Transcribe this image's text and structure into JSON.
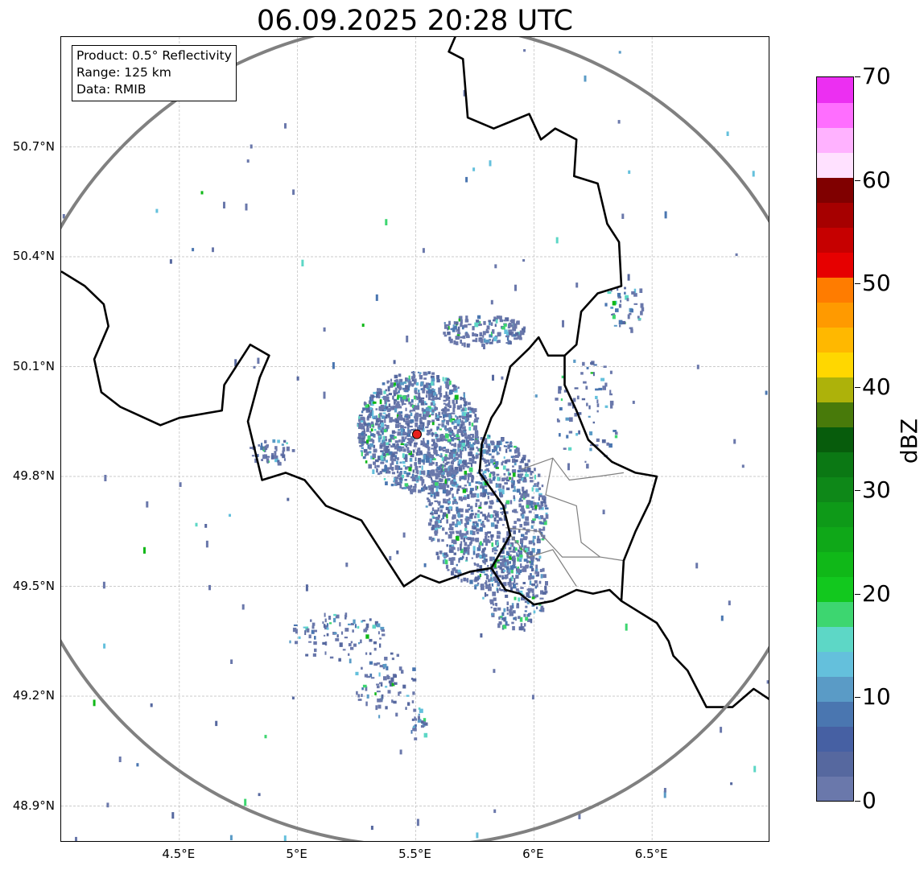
{
  "title": "06.09.2025 20:28 UTC",
  "info_box": {
    "product": "Product: 0.5° Reflectivity",
    "range": "Range: 125 km",
    "data_source": "Data: RMIB"
  },
  "axes": {
    "lon_range": [
      4.0,
      7.0
    ],
    "lat_range": [
      48.8,
      51.0
    ],
    "lat_ticks": [
      {
        "value": 50.7,
        "label": "50.7°N"
      },
      {
        "value": 50.4,
        "label": "50.4°N"
      },
      {
        "value": 50.1,
        "label": "50.1°N"
      },
      {
        "value": 49.8,
        "label": "49.8°N"
      },
      {
        "value": 49.5,
        "label": "49.5°N"
      },
      {
        "value": 49.2,
        "label": "49.2°N"
      },
      {
        "value": 48.9,
        "label": "48.9°N"
      }
    ],
    "lon_ticks": [
      {
        "value": 4.5,
        "label": "4.5°E"
      },
      {
        "value": 5.0,
        "label": "5°E"
      },
      {
        "value": 5.5,
        "label": "5.5°E"
      },
      {
        "value": 6.0,
        "label": "6°E"
      },
      {
        "value": 6.5,
        "label": "6.5°E"
      }
    ],
    "gridlines": true
  },
  "radar": {
    "site": {
      "lon": 5.505,
      "lat": 49.915
    },
    "range_km": 125,
    "site_color": "#e8201c",
    "range_ring_color": "#808080"
  },
  "colorbar": {
    "unit": "dBZ",
    "min": 0,
    "max": 70,
    "tick_labels": [
      {
        "value": 0,
        "label": "0"
      },
      {
        "value": 10,
        "label": "10"
      },
      {
        "value": 20,
        "label": "20"
      },
      {
        "value": 30,
        "label": "30"
      },
      {
        "value": 40,
        "label": "40"
      },
      {
        "value": 50,
        "label": "50"
      },
      {
        "value": 60,
        "label": "60"
      },
      {
        "value": 70,
        "label": "70"
      }
    ],
    "colors": [
      "#6a78ab",
      "#56689f",
      "#4660a3",
      "#4a76b0",
      "#5a9bc6",
      "#64c0dc",
      "#5dd7c6",
      "#3dd670",
      "#12c81e",
      "#10b818",
      "#0fa818",
      "#0e9a18",
      "#0e8818",
      "#0b7814",
      "#075c0c",
      "#487a0a",
      "#adb20a",
      "#ffd700",
      "#ffb800",
      "#ff9a00",
      "#ff7c00",
      "#e60000",
      "#c60000",
      "#a60000",
      "#800000",
      "#ffe1ff",
      "#ffb2ff",
      "#ff6eff",
      "#ec2ff2"
    ]
  },
  "borders": {
    "national": [
      [
        [
          4.0,
          50.36
        ],
        [
          4.1,
          50.32
        ],
        [
          4.18,
          50.27
        ],
        [
          4.2,
          50.21
        ],
        [
          4.14,
          50.12
        ],
        [
          4.17,
          50.03
        ],
        [
          4.25,
          49.99
        ],
        [
          4.42,
          49.94
        ],
        [
          4.5,
          49.96
        ],
        [
          4.68,
          49.98
        ],
        [
          4.69,
          50.05
        ],
        [
          4.8,
          50.16
        ],
        [
          4.88,
          50.13
        ],
        [
          4.84,
          50.07
        ],
        [
          4.79,
          49.95
        ],
        [
          4.85,
          49.79
        ],
        [
          4.95,
          49.81
        ],
        [
          5.03,
          49.79
        ],
        [
          5.12,
          49.72
        ],
        [
          5.27,
          49.68
        ],
        [
          5.33,
          49.62
        ],
        [
          5.45,
          49.5
        ],
        [
          5.52,
          49.53
        ],
        [
          5.6,
          49.51
        ],
        [
          5.73,
          49.54
        ],
        [
          5.82,
          49.55
        ],
        [
          5.88,
          49.49
        ],
        [
          5.94,
          49.48
        ],
        [
          6.0,
          49.45
        ],
        [
          6.08,
          49.46
        ],
        [
          6.18,
          49.49
        ],
        [
          6.25,
          49.48
        ],
        [
          6.32,
          49.49
        ],
        [
          6.37,
          49.46
        ],
        [
          6.42,
          49.44
        ],
        [
          6.52,
          49.4
        ],
        [
          6.57,
          49.35
        ],
        [
          6.59,
          49.31
        ],
        [
          6.65,
          49.27
        ],
        [
          6.73,
          49.17
        ],
        [
          6.84,
          49.17
        ],
        [
          6.93,
          49.22
        ],
        [
          7.0,
          49.19
        ]
      ],
      [
        [
          5.82,
          49.55
        ],
        [
          5.9,
          49.64
        ],
        [
          5.87,
          49.72
        ],
        [
          5.77,
          49.81
        ],
        [
          5.78,
          49.89
        ],
        [
          5.82,
          49.96
        ],
        [
          5.86,
          50.0
        ],
        [
          5.9,
          50.1
        ],
        [
          5.98,
          50.15
        ],
        [
          6.02,
          50.18
        ],
        [
          6.06,
          50.13
        ],
        [
          6.13,
          50.13
        ],
        [
          6.13,
          50.05
        ],
        [
          6.18,
          49.98
        ],
        [
          6.23,
          49.9
        ],
        [
          6.33,
          49.84
        ],
        [
          6.43,
          49.81
        ],
        [
          6.52,
          49.8
        ],
        [
          6.49,
          49.73
        ],
        [
          6.43,
          49.65
        ],
        [
          6.38,
          49.57
        ],
        [
          6.37,
          49.46
        ]
      ],
      [
        [
          6.13,
          50.13
        ],
        [
          6.18,
          50.16
        ],
        [
          6.2,
          50.25
        ],
        [
          6.27,
          50.3
        ],
        [
          6.37,
          50.32
        ],
        [
          6.36,
          50.44
        ],
        [
          6.31,
          50.49
        ],
        [
          6.27,
          50.6
        ],
        [
          6.17,
          50.62
        ],
        [
          6.18,
          50.72
        ],
        [
          6.09,
          50.75
        ],
        [
          6.03,
          50.72
        ],
        [
          5.98,
          50.79
        ],
        [
          5.83,
          50.75
        ],
        [
          5.72,
          50.78
        ],
        [
          5.7,
          50.94
        ],
        [
          5.64,
          50.96
        ],
        [
          5.68,
          51.02
        ]
      ]
    ],
    "regional": [
      [
        [
          5.95,
          49.82
        ],
        [
          6.08,
          49.85
        ],
        [
          6.15,
          49.79
        ],
        [
          6.27,
          49.8
        ],
        [
          6.38,
          49.81
        ]
      ],
      [
        [
          6.08,
          49.85
        ],
        [
          6.05,
          49.75
        ],
        [
          6.18,
          49.72
        ],
        [
          6.2,
          49.62
        ],
        [
          6.28,
          49.58
        ],
        [
          6.38,
          49.57
        ]
      ],
      [
        [
          5.88,
          49.66
        ],
        [
          6.02,
          49.65
        ],
        [
          6.12,
          49.58
        ],
        [
          6.28,
          49.58
        ]
      ],
      [
        [
          5.9,
          49.64
        ],
        [
          5.98,
          49.58
        ],
        [
          6.08,
          49.6
        ],
        [
          6.18,
          49.5
        ]
      ]
    ]
  }
}
